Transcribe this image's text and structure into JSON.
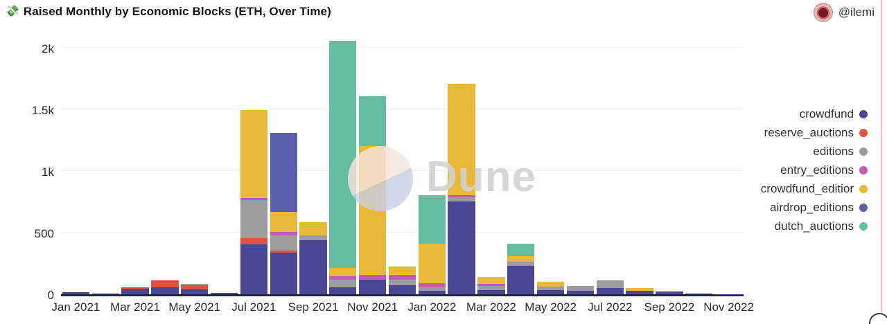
{
  "header": {
    "title_emoji": "💸",
    "title": "Raised Monthly by Economic Blocks (ETH, Over Time)",
    "author_handle": "@ilemi"
  },
  "watermark": {
    "text": "Dune"
  },
  "colors": {
    "baseline": "#262636",
    "gridline": "#efefef",
    "watermark_pink": "#f7e3dc",
    "watermark_lavender": "#c9cfe3"
  },
  "chart_data": {
    "type": "bar",
    "stacked": true,
    "unit": "ETH",
    "grid": "horizontal",
    "legend_position": "right",
    "ylim": [
      0,
      2100
    ],
    "yticks": [
      0,
      500,
      1000,
      1500,
      2000
    ],
    "ytick_labels": [
      "0",
      "500",
      "1k",
      "1.5k",
      "2k"
    ],
    "x": [
      "Jan 2021",
      "Feb 2021",
      "Mar 2021",
      "Apr 2021",
      "May 2021",
      "Jun 2021",
      "Jul 2021",
      "Aug 2021",
      "Sep 2021",
      "Oct 2021",
      "Nov 2021",
      "Dec 2021",
      "Jan 2022",
      "Feb 2022",
      "Mar 2022",
      "Apr 2022",
      "May 2022",
      "Jun 2022",
      "Jul 2022",
      "Aug 2022",
      "Sep 2022",
      "Oct 2022",
      "Nov 2022"
    ],
    "x_tick_labels": [
      "Jan 2021",
      "Mar 2021",
      "May 2021",
      "Jul 2021",
      "Sep 2021",
      "Nov 2021",
      "Jan 2022",
      "Mar 2022",
      "May 2022",
      "Jul 2022",
      "Sep 2022",
      "Nov 2022"
    ],
    "series": [
      {
        "name": "crowdfund",
        "color": "#4a4694",
        "values": [
          15,
          8,
          45,
          58,
          42,
          11,
          405,
          335,
          440,
          55,
          120,
          72,
          26,
          753,
          35,
          232,
          35,
          30,
          50,
          26,
          22,
          3,
          2
        ]
      },
      {
        "name": "reserve_auctions",
        "color": "#e1523d",
        "values": [
          0,
          0,
          10,
          52,
          30,
          0,
          48,
          19,
          0,
          0,
          0,
          0,
          0,
          0,
          0,
          0,
          0,
          0,
          0,
          0,
          0,
          0,
          0
        ]
      },
      {
        "name": "editions",
        "color": "#9c9c9c",
        "values": [
          0,
          0,
          0,
          0,
          12,
          0,
          312,
          125,
          40,
          65,
          0,
          47,
          28,
          31,
          30,
          34,
          25,
          36,
          65,
          0,
          0,
          0,
          0
        ]
      },
      {
        "name": "entry_editions",
        "color": "#c15bb6",
        "values": [
          0,
          0,
          0,
          0,
          0,
          0,
          14,
          24,
          0,
          27,
          35,
          38,
          37,
          20,
          20,
          0,
          0,
          0,
          0,
          0,
          0,
          0,
          0
        ]
      },
      {
        "name": "crowdfund_editior",
        "color": "#e9b839",
        "values": [
          0,
          0,
          0,
          0,
          0,
          0,
          716,
          163,
          105,
          65,
          1048,
          66,
          318,
          904,
          55,
          45,
          41,
          0,
          0,
          23,
          0,
          0,
          0
        ]
      },
      {
        "name": "airdrop_editions",
        "color": "#5a5fae",
        "values": [
          0,
          0,
          0,
          0,
          0,
          0,
          0,
          642,
          0,
          0,
          0,
          0,
          0,
          0,
          0,
          0,
          0,
          0,
          0,
          0,
          0,
          0,
          0
        ]
      },
      {
        "name": "dutch_auctions",
        "color": "#62bda2",
        "values": [
          0,
          0,
          0,
          0,
          0,
          0,
          0,
          0,
          0,
          1846,
          405,
          0,
          394,
          0,
          0,
          99,
          0,
          0,
          0,
          0,
          0,
          0,
          0
        ]
      }
    ]
  }
}
